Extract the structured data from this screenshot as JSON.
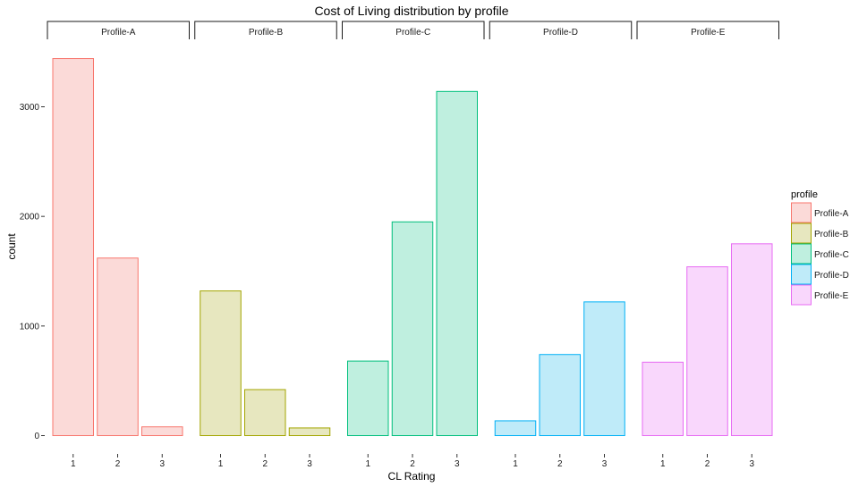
{
  "chart_data": {
    "type": "bar",
    "title": "Cost of Living distribution by profile",
    "xlabel": "CL Rating",
    "ylabel": "count",
    "categories": [
      "1",
      "2",
      "3"
    ],
    "ylim": [
      0,
      3500
    ],
    "yticks": [
      0,
      1000,
      2000,
      3000
    ],
    "grid": false,
    "legend": {
      "title": "profile",
      "position": "right"
    },
    "facets": [
      {
        "name": "Profile-A",
        "fill": "#fbdad8",
        "stroke": "#f8766d",
        "values": [
          3440,
          1620,
          80
        ]
      },
      {
        "name": "Profile-B",
        "fill": "#e7e7bf",
        "stroke": "#a3a500",
        "values": [
          1320,
          420,
          70
        ]
      },
      {
        "name": "Profile-C",
        "fill": "#bfefdf",
        "stroke": "#00bf7d",
        "values": [
          680,
          1950,
          3140
        ]
      },
      {
        "name": "Profile-D",
        "fill": "#bfebf9",
        "stroke": "#00b0f6",
        "values": [
          135,
          740,
          1220
        ]
      },
      {
        "name": "Profile-E",
        "fill": "#f9d7fc",
        "stroke": "#e76bf3",
        "values": [
          670,
          1540,
          1750
        ]
      }
    ]
  }
}
